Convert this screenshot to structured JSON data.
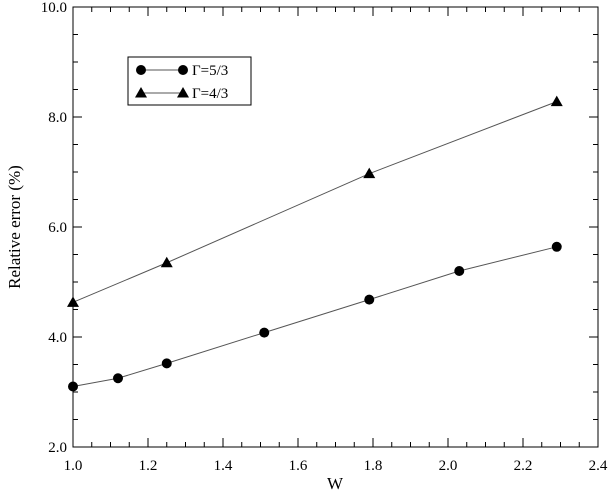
{
  "chart_data": {
    "type": "line",
    "title": "",
    "xlabel": "W",
    "ylabel": "Relative error (%)",
    "xlim": [
      1.0,
      2.4
    ],
    "ylim": [
      2.0,
      10.0
    ],
    "x_ticks": [
      "1.0",
      "1.2",
      "1.4",
      "1.6",
      "1.8",
      "2.0",
      "2.2",
      "2.4"
    ],
    "y_ticks": [
      "2.0",
      "4.0",
      "6.0",
      "8.0",
      "10.0"
    ],
    "grid": false,
    "legend_position": "top-left",
    "series": [
      {
        "name": "Γ=5/3",
        "marker": "circle",
        "x": [
          1.0,
          1.12,
          1.25,
          1.51,
          1.79,
          2.03,
          2.29
        ],
        "y": [
          3.1,
          3.25,
          3.52,
          4.08,
          4.68,
          5.2,
          5.64
        ]
      },
      {
        "name": "Γ=4/3",
        "marker": "triangle",
        "x": [
          1.0,
          1.25,
          1.79,
          2.29
        ],
        "y": [
          4.63,
          5.35,
          6.97,
          8.28
        ]
      }
    ]
  }
}
